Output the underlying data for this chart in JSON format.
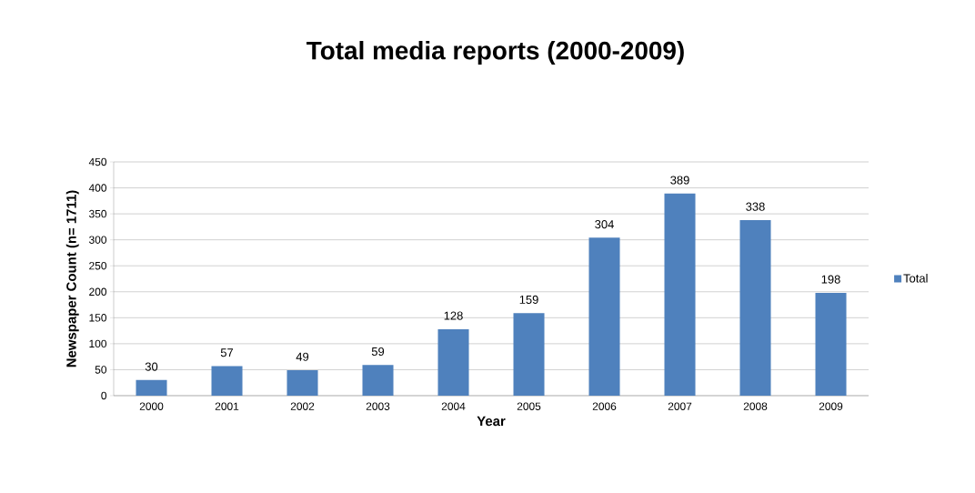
{
  "chart_data": {
    "type": "bar",
    "title": "Total media reports (2000-2009)",
    "xlabel": "Year",
    "ylabel": "Newspaper Count (n= 1711)",
    "categories": [
      "2000",
      "2001",
      "2002",
      "2003",
      "2004",
      "2005",
      "2006",
      "2007",
      "2008",
      "2009"
    ],
    "series": [
      {
        "name": "Total",
        "color": "#4f81bd",
        "values": [
          30,
          57,
          49,
          59,
          128,
          159,
          304,
          389,
          338,
          198
        ]
      }
    ],
    "ylim": [
      0,
      450
    ],
    "yticks": [
      0,
      50,
      100,
      150,
      200,
      250,
      300,
      350,
      400,
      450
    ],
    "grid": "y",
    "legend": "right",
    "data_labels": true
  }
}
